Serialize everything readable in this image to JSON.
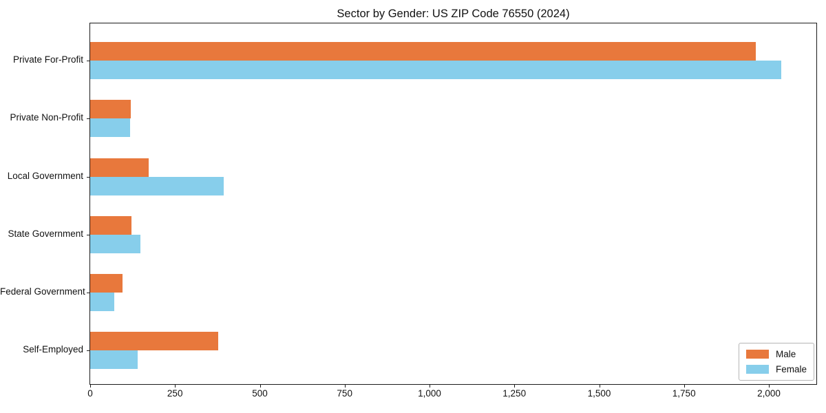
{
  "title": "Sector by Gender: US ZIP Code 76550 (2024)",
  "colors": {
    "male": "#e8783c",
    "female": "#87ceeb",
    "spine": "#1a1a1a",
    "text": "#111111",
    "legend_border": "#b5b5b5",
    "background": "#ffffff"
  },
  "legend": {
    "position": "lower right",
    "entries": [
      {
        "label": "Male",
        "color": "#e8783c"
      },
      {
        "label": "Female",
        "color": "#87ceeb"
      }
    ]
  },
  "chart_data": {
    "type": "bar",
    "orientation": "horizontal",
    "title": "Sector by Gender: US ZIP Code 76550 (2024)",
    "categories": [
      "Private For-Profit",
      "Private Non-Profit",
      "Local Government",
      "State Government",
      "Federal Government",
      "Self-Employed"
    ],
    "series": [
      {
        "name": "Male",
        "color": "#e8783c",
        "values": [
          1961,
          120,
          172,
          122,
          96,
          378
        ]
      },
      {
        "name": "Female",
        "color": "#87ceeb",
        "values": [
          2037,
          118,
          393,
          147,
          71,
          140
        ]
      }
    ],
    "xlabel": "",
    "ylabel": "",
    "xlim": [
      0,
      2140
    ],
    "xtick_values": [
      0,
      250,
      500,
      750,
      1000,
      1250,
      1500,
      1750,
      2000
    ],
    "xtick_labels": [
      "0",
      "250",
      "500",
      "750",
      "1,000",
      "1,250",
      "1,500",
      "1,750",
      "2,000"
    ],
    "grid": false,
    "legend_position": "lower right"
  }
}
